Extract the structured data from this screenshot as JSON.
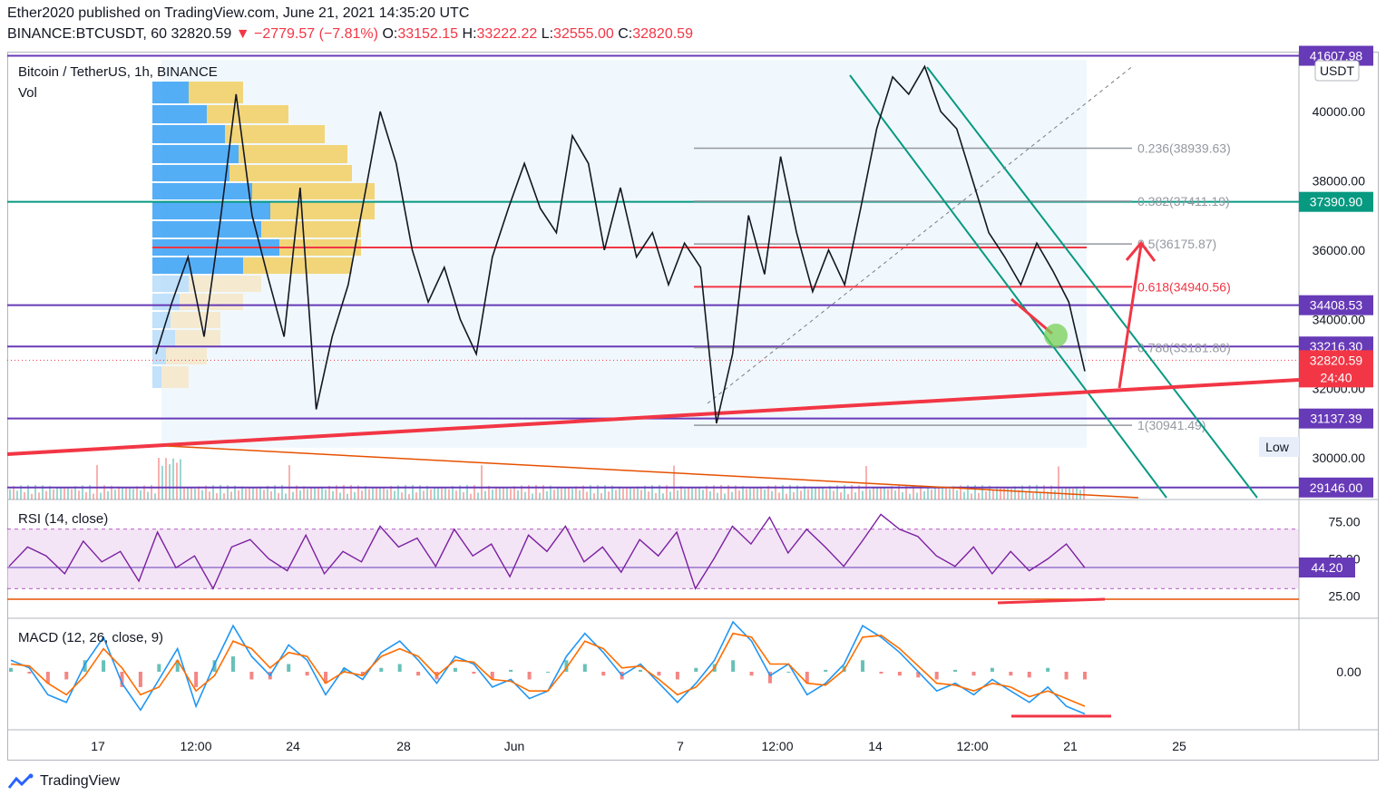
{
  "header": {
    "publisher_line": "Ether2020 published on TradingView.com, June 21, 2021 14:35:20 UTC",
    "symbol": "BINANCE:BTCUSDT, 60",
    "last": "32820.59",
    "change_arrow": "▼",
    "change": "−2779.57 (−7.81%)",
    "ohlc": {
      "o_label": "O:",
      "o": "33152.15",
      "h_label": "H:",
      "h": "33222.22",
      "l_label": "L:",
      "l": "32555.00",
      "c_label": "C:",
      "c": "32820.59"
    }
  },
  "main_pane": {
    "title": "Bitcoin / TetherUS, 1h, BINANCE",
    "vol_label": "Vol",
    "currency_badge": "USDT",
    "low_label": "Low"
  },
  "rsi_pane": {
    "title": "RSI (14, close)",
    "value_badge": "44.20"
  },
  "macd_pane": {
    "title": "MACD (12, 26, close, 9)"
  },
  "chart_data": {
    "type": "line",
    "title": "Bitcoin / TetherUS, 1h, BINANCE",
    "xlabel": "",
    "ylabel": "USDT",
    "ylim": [
      28800,
      41700
    ],
    "x_ticks": [
      "17",
      "12:00",
      "24",
      "28",
      "Jun",
      "7",
      "12:00",
      "14",
      "12:00",
      "21",
      "25"
    ],
    "y_ticks": [
      30000,
      32000,
      34000,
      36000,
      38000,
      40000
    ],
    "y_tick_labels": [
      "30000.00",
      "32000.00",
      "34000.00",
      "36000.00",
      "38000.00",
      "40000.00"
    ],
    "price_path": [
      33000,
      34500,
      35800,
      33500,
      36800,
      40500,
      37000,
      35200,
      33500,
      37800,
      31400,
      33500,
      35000,
      37500,
      40000,
      38500,
      36000,
      34500,
      35500,
      34000,
      33000,
      35800,
      37200,
      38500,
      37200,
      36500,
      39300,
      38500,
      36000,
      37800,
      35800,
      36500,
      35000,
      36200,
      35500,
      31000,
      33000,
      37000,
      35300,
      38700,
      36500,
      34800,
      36000,
      35000,
      37200,
      39500,
      41000,
      40500,
      41300,
      40000,
      39500,
      38000,
      36500,
      35800,
      35000,
      36200,
      35400,
      34500,
      32500
    ],
    "horizontal_levels": [
      {
        "value": 41607.98,
        "label": "41607.98",
        "color": "#673ab7"
      },
      {
        "value": 37390.9,
        "label": "37390.90",
        "color": "#089981"
      },
      {
        "value": 34408.53,
        "label": "34408.53",
        "color": "#673ab7"
      },
      {
        "value": 33216.3,
        "label": "33216.30",
        "color": "#673ab7"
      },
      {
        "value": 32820.59,
        "label": "32820.59",
        "color": "#f23645"
      },
      {
        "value": 31137.39,
        "label": "31137.39",
        "color": "#673ab7"
      },
      {
        "value": 29146.0,
        "label": "29146.00",
        "color": "#673ab7"
      }
    ],
    "countdown": "24:40",
    "fibonacci": [
      {
        "ratio": 0.236,
        "label": "0.236(38939.63)",
        "value": 38939.63
      },
      {
        "ratio": 0.382,
        "label": "0.382(37411.19)",
        "value": 37411.19
      },
      {
        "ratio": 0.5,
        "label": "0.5(36175.87)",
        "value": 36175.87
      },
      {
        "ratio": 0.618,
        "label": "0.618(34940.56)",
        "value": 34940.56
      },
      {
        "ratio": 0.786,
        "label": "0.786(33181.80)",
        "value": 33181.8
      },
      {
        "ratio": 1,
        "label": "1(30941.49)",
        "value": 30941.49
      }
    ],
    "rsi": {
      "name": "RSI (14, close)",
      "ylim": [
        10,
        90
      ],
      "y_ticks": [
        25,
        50,
        75
      ],
      "y_tick_labels": [
        "25.00",
        "50.00",
        "75.00"
      ],
      "band": [
        30,
        70
      ],
      "last": 44.2,
      "values": [
        45,
        58,
        52,
        40,
        62,
        48,
        55,
        35,
        68,
        44,
        52,
        30,
        58,
        63,
        50,
        42,
        66,
        40,
        55,
        48,
        72,
        58,
        64,
        45,
        70,
        52,
        60,
        38,
        66,
        55,
        72,
        48,
        58,
        41,
        63,
        52,
        68,
        30,
        50,
        72,
        60,
        78,
        54,
        70,
        58,
        45,
        62,
        80,
        70,
        65,
        52,
        45,
        58,
        40,
        55,
        42,
        50,
        60,
        44
      ]
    },
    "macd": {
      "name": "MACD (12, 26, close, 9)",
      "y_ticks": [
        0
      ],
      "y_tick_labels": [
        "0.00"
      ],
      "macd_values": [
        300,
        100,
        -600,
        -800,
        200,
        900,
        -300,
        -1000,
        -200,
        600,
        -900,
        200,
        1200,
        400,
        -100,
        700,
        300,
        -600,
        100,
        -200,
        500,
        800,
        300,
        -300,
        400,
        200,
        -400,
        -200,
        -700,
        -500,
        400,
        1000,
        500,
        -100,
        200,
        -300,
        -800,
        -300,
        300,
        1300,
        800,
        -100,
        200,
        -600,
        -300,
        200,
        1200,
        900,
        500,
        0,
        -500,
        -300,
        -600,
        -200,
        -500,
        -800,
        -400,
        -900,
        -1100
      ],
      "signal_values": [
        200,
        150,
        -300,
        -600,
        -100,
        600,
        100,
        -600,
        -400,
        300,
        -500,
        -100,
        800,
        600,
        100,
        500,
        400,
        -300,
        0,
        -100,
        400,
        600,
        400,
        -100,
        300,
        250,
        -200,
        -250,
        -500,
        -500,
        100,
        800,
        600,
        100,
        150,
        -200,
        -600,
        -400,
        100,
        1000,
        900,
        200,
        200,
        -300,
        -350,
        50,
        900,
        950,
        600,
        150,
        -300,
        -350,
        -500,
        -300,
        -400,
        -650,
        -500,
        -700,
        -900
      ]
    }
  }
}
